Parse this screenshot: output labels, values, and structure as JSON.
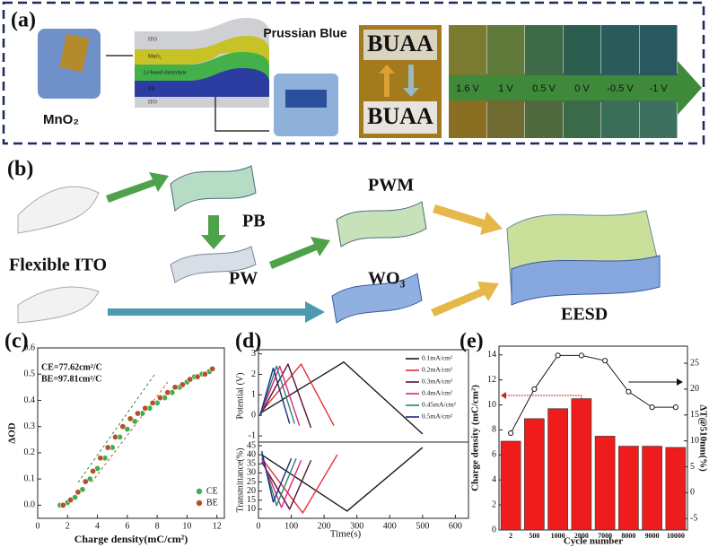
{
  "panel_a": {
    "label": "(a)",
    "material": "MnO₂",
    "prussian_blue": "Prussian Blue",
    "layers": [
      "ITO",
      "MnO₂",
      "Li-based electrolyte",
      "PB",
      "ITO"
    ],
    "logo_top": "BUAA",
    "logo_bottom": "BUAA",
    "voltages": [
      "1.6 V",
      "1 V",
      "0.5 V",
      "0 V",
      "-0.5 V",
      "-1 V"
    ]
  },
  "panel_b": {
    "label": "(b)",
    "nodes": [
      "PB",
      "PWM",
      "Flexible ITO",
      "PW",
      "WO₃",
      "EESD"
    ]
  },
  "chart_data": [
    {
      "type": "scatter",
      "label": "(c)",
      "xlabel": "Charge density(mC/cm²)",
      "ylabel": "ΔOD",
      "annotations": [
        "CE=77.62cm²/C",
        "BE=97.81cm²/C"
      ],
      "xlim": [
        0,
        12.5
      ],
      "xticks": [
        0,
        2,
        4,
        6,
        8,
        10,
        12
      ],
      "ylim": [
        -0.05,
        0.6
      ],
      "yticks": [
        {
          "value": 0,
          "label": "0.0"
        },
        0.1,
        0.2,
        0.3,
        0.4,
        0.5,
        0.6
      ],
      "legend": "lower right",
      "series": [
        {
          "name": "CE",
          "color": "#3cb04a",
          "x": [
            1.5,
            2,
            2.5,
            3,
            3.5,
            4,
            4.5,
            5,
            5.5,
            6,
            6.5,
            7,
            7.5,
            8,
            8.5,
            9,
            9.5,
            10,
            10.5,
            11,
            11.5
          ],
          "values": [
            0,
            0.01,
            0.03,
            0.06,
            0.1,
            0.14,
            0.18,
            0.22,
            0.26,
            0.29,
            0.32,
            0.35,
            0.37,
            0.39,
            0.41,
            0.43,
            0.45,
            0.47,
            0.49,
            0.5,
            0.51
          ]
        },
        {
          "name": "BE",
          "color": "#b5502a",
          "x": [
            1.7,
            2.2,
            2.7,
            3.2,
            3.7,
            4.2,
            4.7,
            5.2,
            5.7,
            6.2,
            6.7,
            7.2,
            7.7,
            8.2,
            8.7,
            9.2,
            9.7,
            10.2,
            10.7,
            11.2,
            11.7
          ],
          "values": [
            0,
            0.02,
            0.05,
            0.09,
            0.13,
            0.18,
            0.22,
            0.26,
            0.3,
            0.33,
            0.35,
            0.37,
            0.39,
            0.41,
            0.43,
            0.45,
            0.46,
            0.48,
            0.49,
            0.5,
            0.52
          ]
        }
      ]
    },
    {
      "type": "line",
      "label": "(d)",
      "xlabel": "Time(s)",
      "ylabel": "Potential (V)",
      "y2label": "Transmittance(%)",
      "xlim": [
        0,
        640
      ],
      "xticks": [
        0,
        100,
        200,
        300,
        400,
        500,
        600
      ],
      "ylim": [
        -1.3,
        3.2
      ],
      "yticks": [
        -1,
        0,
        1,
        2,
        3
      ],
      "y2lim": [
        5,
        47
      ],
      "y2ticks": [
        10,
        15,
        20,
        25,
        30,
        35,
        40,
        45
      ],
      "legend": "upper right",
      "series": [
        {
          "name": "0.1mA/cm²",
          "color": "#1a1a1a",
          "x": [
            5,
            260,
            500
          ],
          "values": [
            0.1,
            2.6,
            -0.9
          ]
        },
        {
          "name": "0.2mA/cm²",
          "color": "#e0303a",
          "x": [
            5,
            130,
            230
          ],
          "values": [
            0.1,
            2.5,
            -0.5
          ]
        },
        {
          "name": "0.3mA/cm²",
          "color": "#5a1030",
          "x": [
            5,
            90,
            160
          ],
          "values": [
            0,
            2.5,
            -0.6
          ]
        },
        {
          "name": "0.4mA/cm²",
          "color": "#e0208a",
          "x": [
            5,
            65,
            125
          ],
          "values": [
            0,
            2.4,
            -0.5
          ]
        },
        {
          "name": "0.45mA/cm²",
          "color": "#1f8a6a",
          "x": [
            5,
            55,
            110
          ],
          "values": [
            0,
            2.4,
            -0.4
          ]
        },
        {
          "name": "0.5mA/cm²",
          "color": "#1c2a80",
          "x": [
            5,
            45,
            95
          ],
          "values": [
            0,
            2.3,
            -0.4
          ]
        },
        {
          "color": "#1a1a1a",
          "axis": "y2",
          "x": [
            10,
            270,
            500
          ],
          "values": [
            40,
            9,
            44
          ]
        },
        {
          "color": "#e0303a",
          "axis": "y2",
          "x": [
            10,
            135,
            240
          ],
          "values": [
            38,
            8,
            40
          ]
        },
        {
          "color": "#5a1030",
          "axis": "y2",
          "x": [
            10,
            95,
            160
          ],
          "values": [
            36,
            10,
            37
          ]
        },
        {
          "color": "#e0208a",
          "axis": "y2",
          "x": [
            10,
            70,
            130
          ],
          "values": [
            38,
            11,
            37
          ]
        },
        {
          "color": "#1f8a6a",
          "axis": "y2",
          "x": [
            10,
            55,
            115
          ],
          "values": [
            40,
            12,
            38
          ]
        },
        {
          "color": "#1c2a80",
          "axis": "y2",
          "x": [
            10,
            45,
            100
          ],
          "values": [
            42,
            14,
            38
          ]
        }
      ]
    },
    {
      "type": "bar",
      "label": "(e)",
      "xlabel": "Cycle number",
      "ylabel": "Charge density (mC/cm²)",
      "y2label": "ΔT@510nm(%)",
      "categories": [
        "2",
        "500",
        "1000",
        "2000",
        "7000",
        "8000",
        "9000",
        "10000"
      ],
      "ylim": [
        0,
        14.7
      ],
      "yticks": [
        0,
        2,
        4,
        6,
        8,
        10,
        12,
        14
      ],
      "y2lim": [
        -7.2,
        28.3
      ],
      "y2ticks": [
        -5,
        0,
        5,
        10,
        15,
        20,
        25
      ],
      "series": [
        {
          "color": "#ee1c1c",
          "values": [
            7.1,
            8.9,
            9.7,
            10.5,
            7.5,
            6.7,
            6.7,
            6.6
          ]
        },
        {
          "color": "#1a1a1a",
          "axis": "y2",
          "values": [
            11.5,
            20,
            26.5,
            26.5,
            25.5,
            19.5,
            16.5,
            16.5
          ]
        }
      ]
    }
  ]
}
